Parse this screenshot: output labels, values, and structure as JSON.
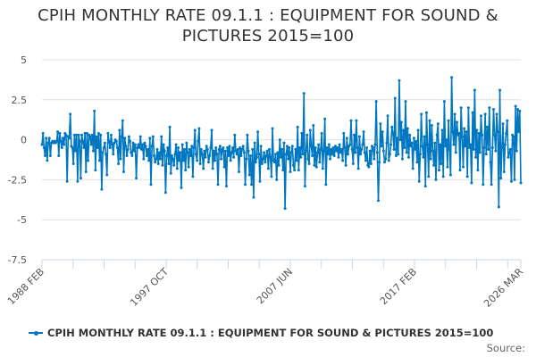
{
  "chart_data": {
    "type": "line",
    "title": "CPIH MONTHLY RATE 09.1.1 : EQUIPMENT FOR SOUND & PICTURES 2015=100",
    "xlabel": "",
    "ylabel": "",
    "ylim": [
      -7.5,
      5
    ],
    "yticks": [
      "5",
      "2.5",
      "0",
      "-2.5",
      "-5",
      "-7.5"
    ],
    "x_range": [
      "1988 FEB",
      "2026 MAR"
    ],
    "xticks": [
      "1988 FEB",
      "1997 OCT",
      "2007 JUN",
      "2017 FEB",
      "2026 MAR"
    ],
    "grid": true,
    "legend": "bottom",
    "color": "#0077c0",
    "series": [
      {
        "name": "CPIH MONTHLY RATE 09.1.1 : EQUIPMENT FOR SOUND & PICTURES 2015=100",
        "values": [
          -0.3,
          0.4,
          -0.5,
          -1.0,
          0.1,
          -1.3,
          -0.2,
          0.1,
          -1.0,
          -0.2,
          -0.1,
          -0.2,
          -0.1,
          -0.2,
          -0.1,
          0.5,
          -1.0,
          0.4,
          -0.1,
          -0.5,
          0.1,
          -0.3,
          0.4,
          0.3,
          -2.6,
          0.2,
          0.1,
          1.6,
          -0.4,
          -0.5,
          -1.5,
          0.3,
          -0.7,
          0.3,
          -2.6,
          0.3,
          -0.1,
          -2.4,
          0.3,
          -0.1,
          -0.5,
          0.4,
          -2.0,
          0.4,
          -1.3,
          0.3,
          0.2,
          -0.3,
          0.3,
          -0.7,
          1.8,
          -1.9,
          0.2,
          -0.5,
          0.4,
          -1.3,
          0.3,
          -3.1,
          -0.8,
          -0.5,
          -0.2,
          -0.9,
          -2.2,
          0.4,
          -0.1,
          -0.5,
          0.3,
          -0.3,
          -0.9,
          -0.2,
          0.0,
          -0.1,
          -0.5,
          -1.5,
          0.6,
          -1.2,
          0.2,
          1.2,
          -2.0,
          0.1,
          -0.4,
          -1.0,
          -0.6,
          0.2,
          -0.1,
          -0.8,
          -1.0,
          -0.2,
          -0.7,
          -0.3,
          -2.4,
          -0.5,
          -0.3,
          -0.5,
          0.2,
          -0.6,
          -0.3,
          -1.2,
          -0.2,
          -0.4,
          -1.0,
          -0.6,
          -1.3,
          0.1,
          -2.8,
          -0.4,
          0.2,
          -1.0,
          -1.4,
          -1.2,
          -0.6,
          -1.5,
          -0.8,
          -1.2,
          0.2,
          -1.6,
          -0.3,
          -0.7,
          -3.3,
          -1.0,
          -0.5,
          -1.5,
          0.8,
          -2.1,
          -1.0,
          -1.2,
          -1.6,
          -0.9,
          -0.3,
          -1.8,
          -0.5,
          -1.3,
          -0.8,
          -3.0,
          -0.3,
          -1.3,
          -0.6,
          -1.9,
          -0.2,
          -0.8,
          -1.7,
          -0.6,
          -1.0,
          -0.4,
          -2.3,
          -0.5,
          0.6,
          -0.9,
          -1.3,
          -0.1,
          0.7,
          -1.5,
          -0.6,
          -0.9,
          -1.8,
          -0.7,
          -1.1,
          -0.4,
          -0.6,
          -1.4,
          -1.0,
          -0.5,
          0.6,
          -1.8,
          -0.7,
          -1.3,
          -0.5,
          -0.9,
          -2.8,
          -0.6,
          -0.4,
          -1.2,
          -0.6,
          -0.5,
          -1.7,
          -0.7,
          -2.9,
          -0.5,
          -1.0,
          -0.4,
          -1.3,
          -0.8,
          -0.5,
          -1.1,
          0.3,
          -0.7,
          -0.9,
          -0.6,
          -2.0,
          -0.5,
          -1.0,
          -0.6,
          -0.4,
          -0.8,
          -2.8,
          -1.2,
          0.3,
          -0.7,
          -2.2,
          -1.0,
          -2.8,
          -0.6,
          -3.6,
          -0.2,
          -1.4,
          -1.1,
          0.5,
          -0.9,
          -2.6,
          -0.4,
          -1.5,
          -1.2,
          -0.8,
          -1.4,
          -1.0,
          -0.7,
          -1.8,
          -0.6,
          -1.1,
          -2.3,
          0.7,
          -1.3,
          -1.4,
          -0.9,
          -2.5,
          -0.8,
          -1.6,
          0.0,
          -1.1,
          -0.6,
          -1.9,
          -0.2,
          -4.3,
          -0.9,
          -0.4,
          -1.2,
          -0.5,
          -2.0,
          -0.8,
          -0.4,
          -1.6,
          -1.9,
          -0.6,
          -1.3,
          0.8,
          -1.9,
          -0.5,
          -1.1,
          0.4,
          -0.9,
          2.9,
          -2.9,
          -0.7,
          0.3,
          -1.2,
          -1.5,
          0.6,
          -0.4,
          -1.0,
          0.9,
          -1.6,
          -0.5,
          -1.7,
          -0.8,
          -0.3,
          -1.4,
          -0.6,
          0.4,
          -1.8,
          -0.7,
          1.3,
          -2.8,
          -0.5,
          -0.9,
          -0.3,
          -1.2,
          -0.6,
          -0.9,
          -0.5,
          -1.0,
          -0.4,
          -0.7,
          -0.5,
          -1.1,
          -0.3,
          -0.8,
          -0.6,
          -1.3,
          0.4,
          -0.5,
          -1.6,
          0.1,
          -0.9,
          -0.4,
          -0.3,
          1.2,
          -0.6,
          -1.5,
          0.3,
          -0.8,
          1.2,
          -0.5,
          -1.8,
          0.2,
          -0.9,
          -0.6,
          -0.3,
          0.5,
          -0.8,
          -1.3,
          -0.5,
          -1.6,
          -1.7,
          -0.7,
          -1.5,
          -0.4,
          -0.5,
          -1.2,
          -0.3,
          2.4,
          -0.8,
          -3.8,
          -1.4,
          1.0,
          -0.4,
          0.5,
          -0.7,
          -1.4,
          -1.2,
          -0.2,
          1.5,
          -1.3,
          -0.9,
          -0.3,
          0.8,
          0.4,
          -0.6,
          2.6,
          -1.0,
          0.1,
          -0.9,
          3.7,
          0.0,
          1.1,
          -1.2,
          0.6,
          -0.5,
          2.4,
          -0.8,
          0.7,
          -1.1,
          0.3,
          -0.4,
          -0.2,
          -1.8,
          0.1,
          -0.6,
          -0.1,
          -1.4,
          0.6,
          -2.6,
          -0.9,
          1.6,
          -0.4,
          -1.1,
          0.2,
          -2.9,
          1.7,
          -0.3,
          -2.3,
          1.2,
          -1.2,
          0.9,
          -0.7,
          -1.6,
          -0.2,
          -2.5,
          0.3,
          1.0,
          -1.9,
          -0.3,
          -1.5,
          0.6,
          -2.3,
          2.4,
          -0.4,
          0.0,
          -1.7,
          1.2,
          -0.6,
          -2.2,
          3.9,
          0.5,
          -0.3,
          1.6,
          -0.8,
          1.1,
          0.3,
          0.4,
          -1.9,
          2.0,
          0.2,
          -1.7,
          0.7,
          -0.4,
          0.5,
          -2.3,
          2.0,
          -0.5,
          -0.3,
          -2.7,
          1.7,
          -0.6,
          3.1,
          -1.1,
          0.6,
          -1.9,
          0.4,
          -0.8,
          1.5,
          0.3,
          -2.8,
          -0.5,
          1.6,
          -0.9,
          0.8,
          -0.6,
          2.0,
          -1.4,
          -2.8,
          -0.5,
          1.9,
          0.3,
          -0.7,
          1.6,
          0.5,
          -4.2,
          3.1,
          -2.4,
          -0.5,
          1.0,
          -2.0,
          -0.3,
          0.4,
          1.2,
          -1.1,
          -0.8,
          -0.6,
          -2.6,
          0.3,
          0.2,
          -2.5,
          2.1,
          -0.7,
          1.9,
          0.5,
          1.8,
          -2.7
        ]
      }
    ],
    "source_label": "Source:"
  }
}
